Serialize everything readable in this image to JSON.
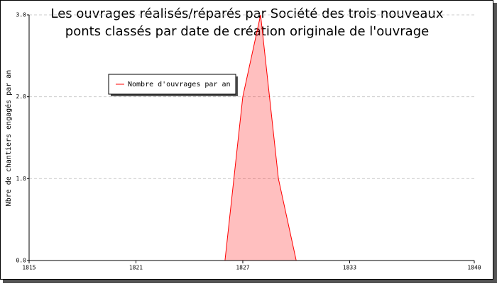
{
  "chart_data": {
    "type": "area",
    "title": "Les ouvrages réalisés/réparés par Société des trois nouveaux ponts classés par date de création originale de l'ouvrage",
    "y_label": "Nbre de chantiers engagés par an",
    "x": [
      1826,
      1827,
      1828,
      1829,
      1830
    ],
    "series": [
      {
        "name": "Nombre d'ouvrages par an",
        "color": "#ff0000",
        "values": [
          0,
          2,
          3,
          1,
          0
        ]
      }
    ],
    "xlim": [
      1815,
      1840
    ],
    "xticks": [
      1815,
      1821,
      1827,
      1833,
      1840
    ],
    "ylim": [
      0,
      3
    ],
    "yticks": [
      {
        "value": 0,
        "label": "0.0"
      },
      {
        "value": 1,
        "label": "1.0"
      },
      {
        "value": 2,
        "label": "2.0"
      },
      {
        "value": 3,
        "label": "3.0"
      }
    ],
    "grid": true
  }
}
